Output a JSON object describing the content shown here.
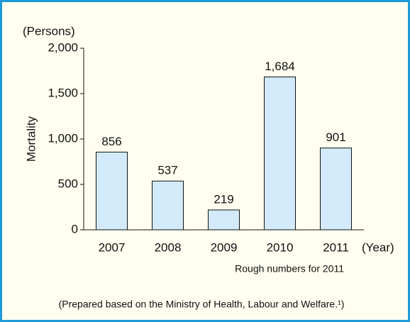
{
  "chart_data": {
    "type": "bar",
    "y_unit": "(Persons)",
    "ylabel": "Mortality",
    "xlabel": "(Year)",
    "categories": [
      "2007",
      "2008",
      "2009",
      "2010",
      "2011"
    ],
    "values": [
      856,
      537,
      219,
      1684,
      901
    ],
    "value_labels": [
      "856",
      "537",
      "219",
      "1,684",
      "901"
    ],
    "color": "#d2eaf9",
    "ylim": [
      0,
      2000
    ],
    "yticks": [
      0,
      500,
      {
        "value": 1000,
        "label": "1,000"
      },
      {
        "value": 1500,
        "label": "1,500"
      },
      {
        "value": 2000,
        "label": "2,000"
      }
    ],
    "note": "Rough numbers for 2011",
    "source": "(Prepared based on the Ministry of Health, Labour and Welfare.¹)",
    "grid": false
  }
}
